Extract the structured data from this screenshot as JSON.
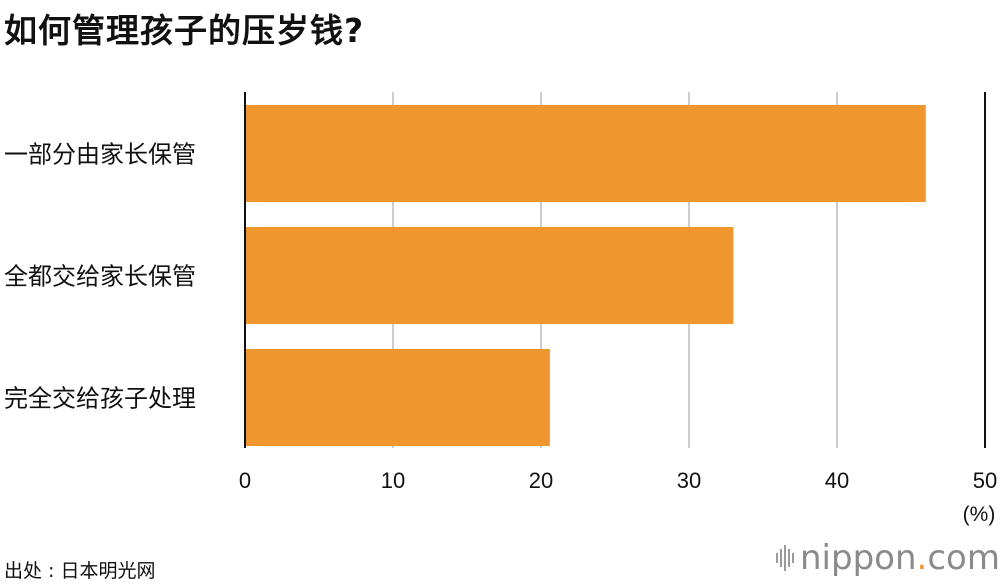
{
  "title": "如何管理孩子的压岁钱?",
  "chart_data": {
    "type": "bar",
    "orientation": "horizontal",
    "categories": [
      "一部分由家长保管",
      "全都交给家长保管",
      "完全交给孩子处理"
    ],
    "values": [
      46,
      33,
      20.6
    ],
    "xlim": [
      0,
      50
    ],
    "xticks": [
      "0",
      "10",
      "20",
      "30",
      "40",
      "50"
    ],
    "unit_label": "(%)",
    "grid": true,
    "bar_color": "#f0962e"
  },
  "source": "出处 : 日本明光网",
  "brand": {
    "name_main": "nippon",
    "name_dot": ".",
    "name_tld": "com",
    "icon": "nippon-logo-bars-icon"
  }
}
